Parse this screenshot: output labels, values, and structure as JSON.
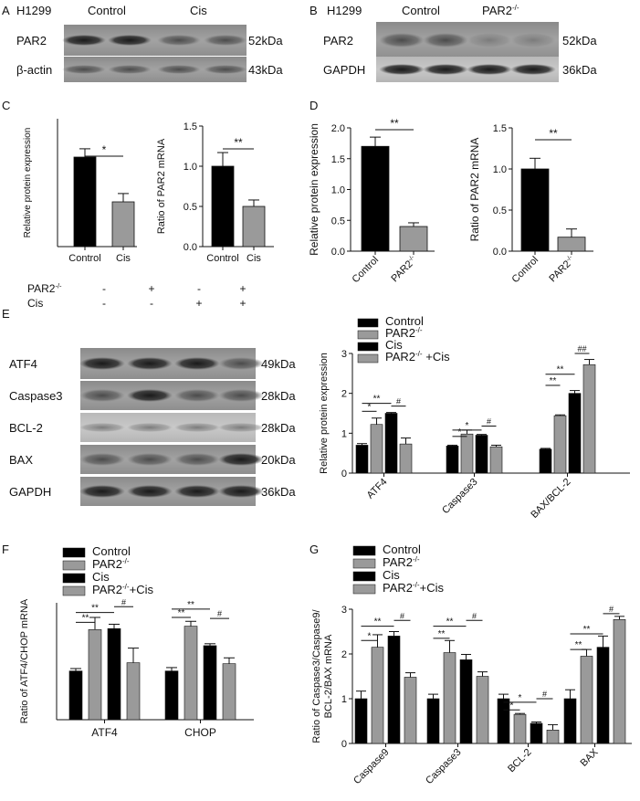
{
  "panels": {
    "A": {
      "letter": "A",
      "cell_line": "H1299",
      "groups": [
        "Control",
        "Cis"
      ],
      "rows": [
        {
          "name": "PAR2",
          "size": "52kDa"
        },
        {
          "name": "β-actin",
          "size": "43kDa"
        }
      ]
    },
    "B": {
      "letter": "B",
      "cell_line": "H1299",
      "group_control": "Control",
      "group_ko": "PAR2",
      "group_ko_sup": "-/-",
      "rows": [
        {
          "name": "PAR2",
          "size": "52kDa"
        },
        {
          "name": "GAPDH",
          "size": "36kDa"
        }
      ]
    },
    "C": {
      "letter": "C"
    },
    "D": {
      "letter": "D"
    },
    "E": {
      "letter": "E",
      "treat_rows": [
        {
          "label": "PAR2",
          "sup": "-/-",
          "signs": [
            "-",
            "+",
            "-",
            "+"
          ]
        },
        {
          "label": "Cis",
          "sup": "",
          "signs": [
            "-",
            "-",
            "+",
            "+"
          ]
        }
      ],
      "rows": [
        {
          "name": "ATF4",
          "size": "49kDa"
        },
        {
          "name": "Caspase3",
          "size": "28kDa"
        },
        {
          "name": "BCL-2",
          "size": "28kDa"
        },
        {
          "name": "BAX",
          "size": "20kDa"
        },
        {
          "name": "GAPDH",
          "size": "36kDa"
        }
      ]
    },
    "F": {
      "letter": "F"
    },
    "G": {
      "letter": "G"
    }
  },
  "legend_four": [
    {
      "label": "Control",
      "sup": "",
      "tail": "",
      "color": "#000000"
    },
    {
      "label": "PAR2",
      "sup": "-/-",
      "tail": "",
      "color": "#9a9a9a"
    },
    {
      "label": "Cis",
      "sup": "",
      "tail": "",
      "color": "#000000"
    },
    {
      "label": "PAR2",
      "sup": "-/-",
      "tail": "+Cis",
      "color": "#9a9a9a"
    }
  ],
  "legend_E": [
    {
      "label": "Control",
      "sup": "",
      "tail": "",
      "color": "#000000"
    },
    {
      "label": "PAR2",
      "sup": "-/-",
      "tail": "",
      "color": "#9a9a9a"
    },
    {
      "label": "Cis",
      "sup": "",
      "tail": "",
      "color": "#000000"
    },
    {
      "label": "PAR2",
      "sup": "-/-",
      "tail": " +Cis",
      "color": "#9a9a9a"
    }
  ],
  "chart_data": [
    {
      "id": "C1",
      "type": "bar",
      "ylabel": "Relative protein expression",
      "categories": [
        "Control",
        "Cis"
      ],
      "values": [
        1.4,
        0.7
      ],
      "errors": [
        0.13,
        0.13
      ],
      "colors": [
        "#000000",
        "#9a9a9a"
      ],
      "ylim": [
        0,
        2.0
      ],
      "yticks": [],
      "sig": [
        {
          "from": 0,
          "to": 1,
          "label": "*"
        }
      ]
    },
    {
      "id": "C2",
      "type": "bar",
      "ylabel": "Ratio of PAR2 mRNA",
      "categories": [
        "Control",
        "Cis"
      ],
      "values": [
        1.0,
        0.5
      ],
      "errors": [
        0.17,
        0.08
      ],
      "colors": [
        "#000000",
        "#9a9a9a"
      ],
      "ylim": [
        0,
        1.5
      ],
      "yticks": [
        "0.0",
        "0.5",
        "1.0",
        "1.5"
      ],
      "sig": [
        {
          "from": 0,
          "to": 1,
          "label": "**"
        }
      ]
    },
    {
      "id": "D1",
      "type": "bar",
      "ylabel": "Relative protein expression",
      "categories": [
        "Control",
        "PAR2"
      ],
      "category_sups": [
        "",
        "-/-"
      ],
      "values": [
        1.7,
        0.4
      ],
      "errors": [
        0.15,
        0.06
      ],
      "colors": [
        "#000000",
        "#9a9a9a"
      ],
      "ylim": [
        0,
        2.0
      ],
      "yticks": [
        "0.0",
        "0.5",
        "1.0",
        "1.5",
        "2.0"
      ],
      "sig": [
        {
          "from": 0,
          "to": 1,
          "label": "**"
        }
      ]
    },
    {
      "id": "D2",
      "type": "bar",
      "ylabel": "Ratio of PAR2 mRNA",
      "categories": [
        "Control",
        "PAR2"
      ],
      "category_sups": [
        "",
        "-/-"
      ],
      "values": [
        1.0,
        0.17
      ],
      "errors": [
        0.13,
        0.1
      ],
      "colors": [
        "#000000",
        "#9a9a9a"
      ],
      "ylim": [
        0,
        1.5
      ],
      "yticks": [
        "0.0",
        "0.5",
        "1.0",
        "1.5"
      ],
      "sig": [
        {
          "from": 0,
          "to": 1,
          "label": "**"
        }
      ]
    },
    {
      "id": "E",
      "type": "bar",
      "ylabel": "Relative protein expression",
      "categories": [
        "ATF4",
        "Caspase3",
        "BAX/BCL-2"
      ],
      "series": [
        {
          "values": [
            0.7,
            0.68,
            0.6
          ],
          "errors": [
            0.04,
            0.02,
            0.02
          ]
        },
        {
          "values": [
            1.22,
            0.98,
            1.44
          ],
          "errors": [
            0.16,
            0.1,
            0.02
          ]
        },
        {
          "values": [
            1.5,
            0.95,
            2.0
          ],
          "errors": [
            0.02,
            0.02,
            0.07
          ]
        },
        {
          "values": [
            0.73,
            0.66,
            2.72
          ],
          "errors": [
            0.15,
            0.04,
            0.13
          ]
        }
      ],
      "ylim": [
        0,
        3
      ],
      "yticks": [
        "0",
        "1",
        "2",
        "3"
      ],
      "sig": [
        {
          "cat": 0,
          "from": 0,
          "to": 1,
          "label": "*",
          "y": 1.55
        },
        {
          "cat": 0,
          "from": 0,
          "to": 2,
          "label": "**",
          "y": 1.75
        },
        {
          "cat": 0,
          "from": 2,
          "to": 3,
          "label": "#",
          "y": 1.68
        },
        {
          "cat": 1,
          "from": 0,
          "to": 1,
          "label": "*",
          "y": 0.92
        },
        {
          "cat": 1,
          "from": 0,
          "to": 2,
          "label": "*",
          "y": 1.08
        },
        {
          "cat": 1,
          "from": 2,
          "to": 3,
          "label": "#",
          "y": 1.18
        },
        {
          "cat": 2,
          "from": 0,
          "to": 1,
          "label": "**",
          "y": 2.2
        },
        {
          "cat": 2,
          "from": 0,
          "to": 2,
          "label": "**",
          "y": 2.48
        },
        {
          "cat": 2,
          "from": 2,
          "to": 3,
          "label": "##",
          "y": 3.0
        }
      ]
    },
    {
      "id": "F",
      "type": "bar",
      "ylabel": "Ratio of ATF4/CHOP mRNA",
      "categories": [
        "ATF4",
        "CHOP"
      ],
      "series": [
        {
          "values": [
            1.0,
            1.0
          ],
          "errors": [
            0.05,
            0.07
          ]
        },
        {
          "values": [
            1.85,
            1.92
          ],
          "errors": [
            0.25,
            0.1
          ]
        },
        {
          "values": [
            1.87,
            1.52
          ],
          "errors": [
            0.09,
            0.04
          ]
        },
        {
          "values": [
            1.17,
            1.15
          ],
          "errors": [
            0.3,
            0.12
          ]
        }
      ],
      "ylim": [
        0,
        2.4
      ],
      "yticks": [],
      "sig": [
        {
          "cat": 0,
          "from": 0,
          "to": 1,
          "label": "**",
          "y": 2.0
        },
        {
          "cat": 0,
          "from": 0,
          "to": 2,
          "label": "**",
          "y": 2.2
        },
        {
          "cat": 0,
          "from": 2,
          "to": 3,
          "label": "#",
          "y": 2.32
        },
        {
          "cat": 1,
          "from": 0,
          "to": 1,
          "label": "**",
          "y": 2.1
        },
        {
          "cat": 1,
          "from": 0,
          "to": 2,
          "label": "**",
          "y": 2.27
        },
        {
          "cat": 1,
          "from": 2,
          "to": 3,
          "label": "#",
          "y": 2.08
        }
      ]
    },
    {
      "id": "G",
      "type": "bar",
      "ylabel": "Ratio of Caspase3/Caspase9/ BCL-2/BAX mRNA",
      "ylabel_lines": [
        "Ratio of Caspase3/Caspase9/",
        "BCL-2/BAX mRNA"
      ],
      "categories": [
        "Caspase9",
        "Caspase3",
        "BCL-2",
        "BAX"
      ],
      "series": [
        {
          "values": [
            1.0,
            1.0,
            1.0,
            1.0
          ],
          "errors": [
            0.17,
            0.1,
            0.1,
            0.2
          ]
        },
        {
          "values": [
            2.15,
            2.03,
            0.65,
            1.95
          ],
          "errors": [
            0.28,
            0.27,
            0.02,
            0.15
          ]
        },
        {
          "values": [
            2.4,
            1.87,
            0.45,
            2.15
          ],
          "errors": [
            0.1,
            0.12,
            0.03,
            0.25
          ]
        },
        {
          "values": [
            1.48,
            1.5,
            0.3,
            2.77
          ],
          "errors": [
            0.1,
            0.1,
            0.12,
            0.07
          ]
        }
      ],
      "ylim": [
        0,
        3
      ],
      "yticks": [
        "0",
        "1",
        "2",
        "3"
      ],
      "sig": [
        {
          "cat": 0,
          "from": 0,
          "to": 1,
          "label": "*",
          "y": 2.3
        },
        {
          "cat": 0,
          "from": 0,
          "to": 2,
          "label": "**",
          "y": 2.62
        },
        {
          "cat": 0,
          "from": 2,
          "to": 3,
          "label": "#",
          "y": 2.75
        },
        {
          "cat": 1,
          "from": 0,
          "to": 1,
          "label": "**",
          "y": 2.35
        },
        {
          "cat": 1,
          "from": 0,
          "to": 2,
          "label": "**",
          "y": 2.62
        },
        {
          "cat": 1,
          "from": 2,
          "to": 3,
          "label": "#",
          "y": 2.75
        },
        {
          "cat": 2,
          "from": 0,
          "to": 1,
          "label": "*",
          "y": 0.75
        },
        {
          "cat": 2,
          "from": 0,
          "to": 2,
          "label": "*",
          "y": 0.92
        },
        {
          "cat": 2,
          "from": 2,
          "to": 3,
          "label": "#",
          "y": 1.0
        },
        {
          "cat": 3,
          "from": 0,
          "to": 1,
          "label": "**",
          "y": 2.1
        },
        {
          "cat": 3,
          "from": 0,
          "to": 2,
          "label": "**",
          "y": 2.45
        },
        {
          "cat": 3,
          "from": 2,
          "to": 3,
          "label": "#",
          "y": 2.9
        }
      ]
    }
  ]
}
